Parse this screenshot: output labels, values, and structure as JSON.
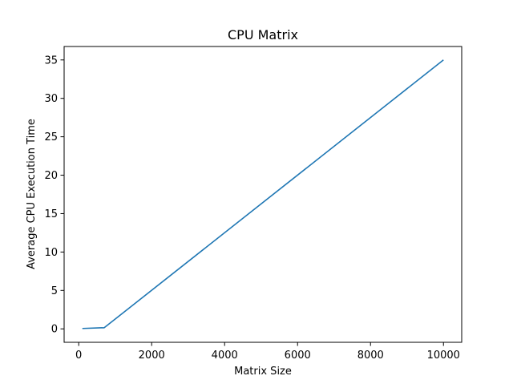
{
  "chart_data": {
    "type": "line",
    "title": "CPU Matrix",
    "xlabel": "Matrix Size",
    "ylabel": "Average CPU Execution Time",
    "xlim": [
      -400,
      10500
    ],
    "ylim": [
      -1.75,
      36.75
    ],
    "xticks": [
      0,
      2000,
      4000,
      6000,
      8000,
      10000
    ],
    "yticks": [
      0,
      5,
      10,
      15,
      20,
      25,
      30,
      35
    ],
    "xtick_labels": [
      "0",
      "2000",
      "4000",
      "6000",
      "8000",
      "10000"
    ],
    "ytick_labels": [
      "0",
      "5",
      "10",
      "15",
      "20",
      "25",
      "30",
      "35"
    ],
    "grid": false,
    "series": [
      {
        "color": "#1f77b4",
        "x": [
          100,
          700,
          10000
        ],
        "y": [
          0.05,
          0.15,
          35.0
        ]
      }
    ]
  }
}
